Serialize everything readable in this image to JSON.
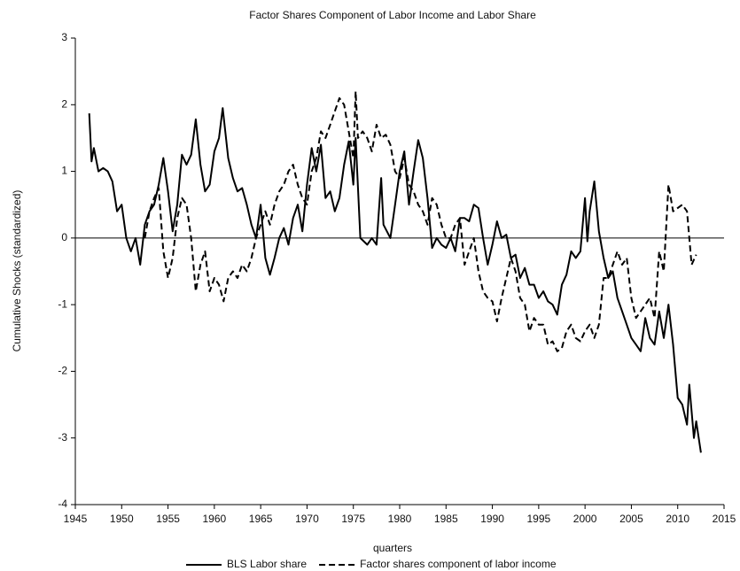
{
  "chart_data": {
    "type": "line",
    "title": "Factor Shares Component of Labor Income and Labor Share",
    "x_label": "quarters",
    "y_label": "Cumulative Shocks (standardized)",
    "xlim": [
      1945,
      2015
    ],
    "xticks": [
      1945,
      1950,
      1955,
      1960,
      1965,
      1970,
      1975,
      1980,
      1985,
      1990,
      1995,
      2000,
      2005,
      2010,
      2015
    ],
    "ylim": [
      -4,
      3
    ],
    "yticks": [
      -4,
      -3,
      -2,
      -1,
      0,
      1,
      2,
      3
    ],
    "zero_line": true,
    "legend": "bottom",
    "series": [
      {
        "name": "BLS Labor share",
        "color": "#000000",
        "linestyle": "solid",
        "x": [
          1946.5,
          1946.75,
          1947,
          1947.5,
          1948,
          1948.5,
          1949,
          1949.5,
          1950,
          1950.5,
          1951,
          1951.5,
          1952,
          1952.5,
          1953,
          1953.5,
          1954,
          1954.5,
          1955,
          1955.5,
          1956,
          1956.5,
          1957,
          1957.5,
          1958,
          1958.5,
          1959,
          1959.5,
          1960,
          1960.5,
          1960.9,
          1961.5,
          1962,
          1962.5,
          1963,
          1963.5,
          1964,
          1964.5,
          1965,
          1965.5,
          1966,
          1966.5,
          1967,
          1967.5,
          1968,
          1968.5,
          1969,
          1969.5,
          1970,
          1970.5,
          1971,
          1971.5,
          1972,
          1972.5,
          1973,
          1973.5,
          1974,
          1974.5,
          1975,
          1975.25,
          1975.75,
          1976.5,
          1977,
          1977.5,
          1978,
          1978.25,
          1979,
          1979.5,
          1980,
          1980.5,
          1981,
          1981.5,
          1982,
          1982.5,
          1983,
          1983.5,
          1984,
          1984.5,
          1985,
          1985.5,
          1986,
          1986.5,
          1987,
          1987.5,
          1988,
          1988.5,
          1989,
          1989.5,
          1990,
          1990.5,
          1991,
          1991.5,
          1992,
          1992.5,
          1993,
          1993.5,
          1994,
          1994.5,
          1995,
          1995.5,
          1996,
          1996.5,
          1997,
          1997.5,
          1998,
          1998.5,
          1999,
          1999.5,
          2000,
          2000.25,
          2000.5,
          2001,
          2001.5,
          2002,
          2002.5,
          2003,
          2003.5,
          2004,
          2004.5,
          2005,
          2005.5,
          2006,
          2006.5,
          2007,
          2007.5,
          2008,
          2008.5,
          2009,
          2009.5,
          2010,
          2010.5,
          2011,
          2011.25,
          2011.75,
          2012,
          2012.5
        ],
        "values": [
          1.87,
          1.15,
          1.35,
          1.0,
          1.05,
          1.0,
          0.85,
          0.4,
          0.5,
          0.0,
          -0.2,
          0.0,
          -0.4,
          0.2,
          0.4,
          0.5,
          0.8,
          1.2,
          0.7,
          0.1,
          0.5,
          1.25,
          1.1,
          1.25,
          1.78,
          1.1,
          0.7,
          0.8,
          1.3,
          1.5,
          1.95,
          1.2,
          0.9,
          0.7,
          0.75,
          0.5,
          0.2,
          0.0,
          0.5,
          -0.3,
          -0.55,
          -0.3,
          0.0,
          0.15,
          -0.1,
          0.3,
          0.5,
          0.1,
          0.8,
          1.35,
          1.0,
          1.4,
          0.6,
          0.7,
          0.4,
          0.6,
          1.1,
          1.45,
          0.8,
          1.5,
          0.0,
          -0.1,
          0.0,
          -0.1,
          0.9,
          0.2,
          0.0,
          0.5,
          1.0,
          1.3,
          0.5,
          1.0,
          1.47,
          1.2,
          0.6,
          -0.15,
          0.0,
          -0.1,
          -0.15,
          0.0,
          -0.2,
          0.3,
          0.3,
          0.25,
          0.5,
          0.45,
          0.0,
          -0.4,
          -0.1,
          0.25,
          0.0,
          0.05,
          -0.3,
          -0.25,
          -0.6,
          -0.45,
          -0.7,
          -0.7,
          -0.9,
          -0.8,
          -0.95,
          -1.0,
          -1.15,
          -0.7,
          -0.55,
          -0.2,
          -0.3,
          -0.2,
          0.6,
          -0.05,
          0.4,
          0.85,
          0.1,
          -0.3,
          -0.6,
          -0.5,
          -0.9,
          -1.1,
          -1.3,
          -1.5,
          -1.6,
          -1.7,
          -1.2,
          -1.5,
          -1.6,
          -1.1,
          -1.5,
          -1.0,
          -1.6,
          -2.4,
          -2.5,
          -2.8,
          -2.2,
          -3.0,
          -2.75,
          -3.22
        ]
      },
      {
        "name": "Factor shares component of labor income",
        "color": "#000000",
        "linestyle": "dashed",
        "x": [
          1952.5,
          1953,
          1953.5,
          1954,
          1954.5,
          1955,
          1955.5,
          1956,
          1956.5,
          1957,
          1957.5,
          1958,
          1958.5,
          1959,
          1959.5,
          1960,
          1960.5,
          1961,
          1961.5,
          1962,
          1962.5,
          1963,
          1963.5,
          1964,
          1964.5,
          1965,
          1965.5,
          1966,
          1966.5,
          1967,
          1967.5,
          1968,
          1968.5,
          1969,
          1969.5,
          1970,
          1970.5,
          1971,
          1971.5,
          1972,
          1972.5,
          1973,
          1973.5,
          1974,
          1974.5,
          1975,
          1975.25,
          1975.5,
          1976,
          1976.5,
          1977,
          1977.5,
          1978,
          1978.5,
          1979,
          1979.5,
          1980,
          1980.5,
          1981,
          1981.5,
          1982,
          1982.5,
          1983,
          1983.5,
          1984,
          1984.5,
          1985,
          1985.5,
          1986,
          1986.5,
          1987,
          1987.5,
          1988,
          1988.5,
          1989,
          1989.5,
          1990,
          1990.5,
          1991,
          1991.5,
          1992,
          1992.5,
          1993,
          1993.5,
          1994,
          1994.5,
          1995,
          1995.5,
          1996,
          1996.5,
          1997,
          1997.5,
          1998,
          1998.5,
          1999,
          1999.5,
          2000,
          2000.5,
          2001,
          2001.5,
          2002,
          2002.5,
          2003,
          2003.5,
          2004,
          2004.5,
          2005,
          2005.5,
          2006,
          2006.5,
          2007,
          2007.5,
          2008,
          2008.5,
          2009,
          2009.5,
          2010,
          2010.5,
          2011,
          2011.5,
          2012
        ],
        "values": [
          0.0,
          0.4,
          0.6,
          0.75,
          -0.2,
          -0.6,
          -0.3,
          0.3,
          0.6,
          0.5,
          0.0,
          -0.8,
          -0.4,
          -0.2,
          -0.8,
          -0.6,
          -0.7,
          -0.95,
          -0.6,
          -0.5,
          -0.6,
          -0.4,
          -0.5,
          -0.3,
          0.0,
          0.2,
          0.4,
          0.2,
          0.5,
          0.7,
          0.8,
          1.0,
          1.1,
          0.8,
          0.6,
          0.5,
          1.0,
          1.2,
          1.6,
          1.5,
          1.7,
          1.9,
          2.1,
          2.0,
          1.6,
          1.2,
          2.2,
          1.5,
          1.6,
          1.5,
          1.3,
          1.7,
          1.5,
          1.55,
          1.4,
          1.0,
          0.9,
          1.2,
          0.8,
          0.7,
          0.5,
          0.4,
          0.2,
          0.6,
          0.5,
          0.2,
          0.0,
          0.0,
          0.2,
          0.3,
          -0.4,
          -0.2,
          0.0,
          -0.5,
          -0.8,
          -0.9,
          -0.95,
          -1.25,
          -0.9,
          -0.6,
          -0.3,
          -0.5,
          -0.9,
          -1.0,
          -1.4,
          -1.2,
          -1.3,
          -1.3,
          -1.6,
          -1.55,
          -1.7,
          -1.65,
          -1.4,
          -1.3,
          -1.5,
          -1.55,
          -1.4,
          -1.3,
          -1.5,
          -1.3,
          -0.6,
          -0.6,
          -0.4,
          -0.2,
          -0.4,
          -0.3,
          -0.9,
          -1.2,
          -1.1,
          -1.0,
          -0.9,
          -1.2,
          -0.2,
          -0.5,
          0.8,
          0.4,
          0.45,
          0.5,
          0.4,
          -0.4,
          -0.25
        ]
      }
    ]
  }
}
